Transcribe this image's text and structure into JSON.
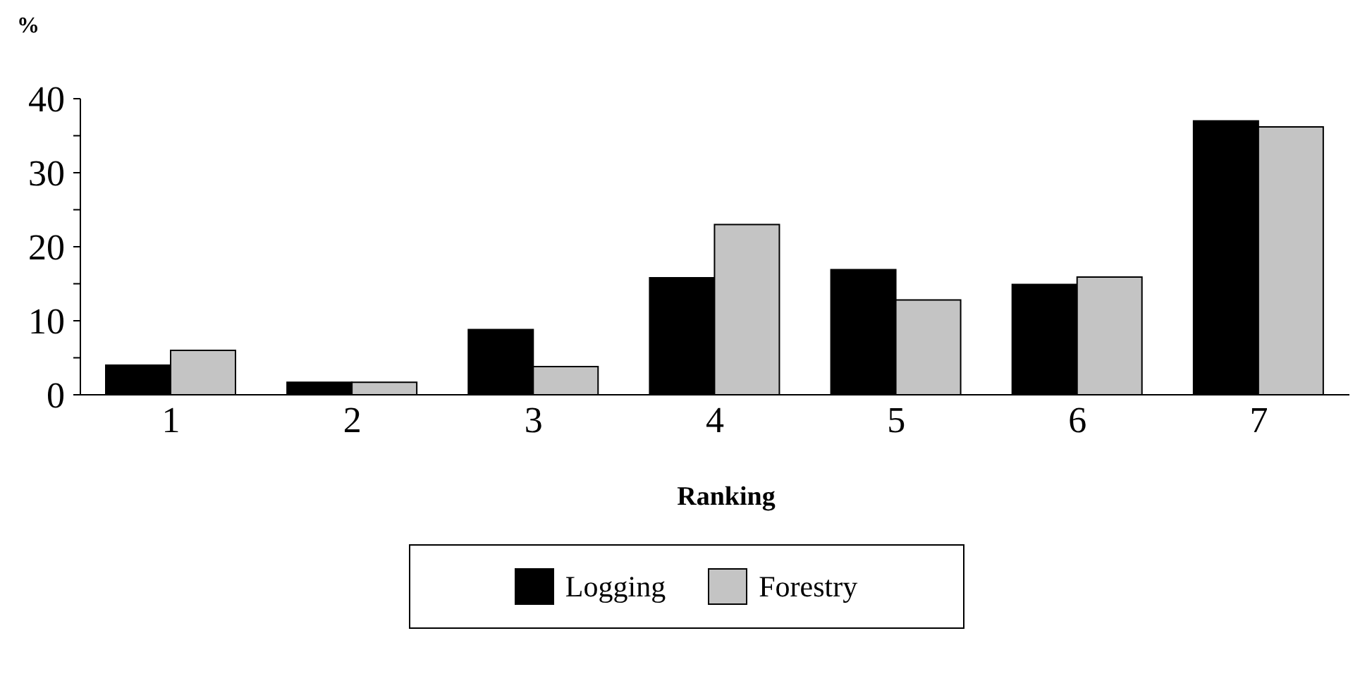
{
  "chart_data": {
    "type": "bar",
    "ylabel": "%",
    "xlabel": "Ranking",
    "categories": [
      "1",
      "2",
      "3",
      "4",
      "5",
      "6",
      "7"
    ],
    "series": [
      {
        "name": "Logging",
        "color": "#000000",
        "values": [
          4,
          1.7,
          8.8,
          15.8,
          16.9,
          14.9,
          37
        ]
      },
      {
        "name": "Forestry",
        "color": "#c4c4c4",
        "values": [
          6,
          1.7,
          3.8,
          23,
          12.8,
          15.9,
          36.2
        ]
      }
    ],
    "ylim": [
      0,
      40
    ],
    "yticks": [
      0,
      {
        "value": 5,
        "label": null
      },
      10,
      {
        "value": 15,
        "label": null
      },
      20,
      {
        "value": 25,
        "label": null
      },
      30,
      {
        "value": 35,
        "label": null
      },
      40
    ],
    "grid": false,
    "legend": "bottom"
  }
}
